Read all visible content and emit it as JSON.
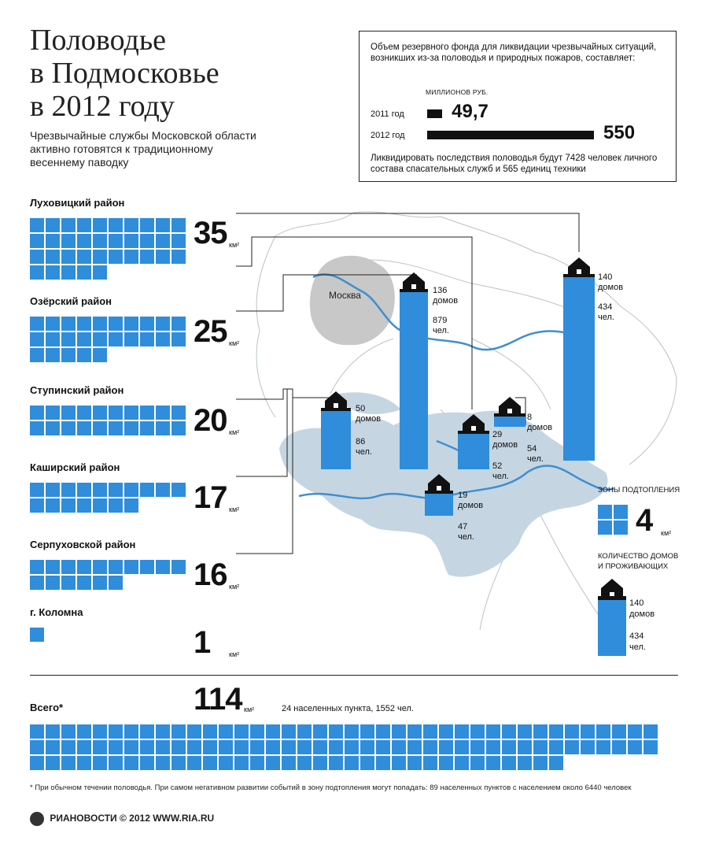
{
  "title_lines": [
    "Половодье",
    "в Подмосковье",
    "в 2012 году"
  ],
  "subtitle": "Чрезвычайные службы Московской области активно готовятся к традиционному весеннему паводку",
  "fund": {
    "title": "Объем резервного фонда для ликвидации чрезвычайных ситуаций, возникших из-за половодья и природных пожаров, составляет:",
    "unit": "МИЛЛИОНОВ РУБ.",
    "rows": [
      {
        "year": "2011 год",
        "value_label": "49,7",
        "value": 49.7
      },
      {
        "year": "2012 год",
        "value_label": "550",
        "value": 550
      }
    ],
    "footer": "Ликвидировать последствия половодья будут 7428 человек личного состава спасательных служб и 565 единиц техники"
  },
  "districts": [
    {
      "name": "Луховицкий район",
      "area_label": "35",
      "area": 35
    },
    {
      "name": "Озёрский район",
      "area_label": "25",
      "area": 25
    },
    {
      "name": "Ступинский район",
      "area_label": "20",
      "area": 20
    },
    {
      "name": "Каширский район",
      "area_label": "17",
      "area": 17
    },
    {
      "name": "Серпуховской район",
      "area_label": "16",
      "area": 16
    },
    {
      "name": "г. Коломна",
      "area_label": "1",
      "area": 1
    }
  ],
  "km_unit": "км²",
  "total": {
    "label": "Всего*",
    "area_label": "114",
    "area": 114,
    "summary": "24 населенных пункта, 1552 чел."
  },
  "map": {
    "city_label": "Москва",
    "houses": [
      {
        "houses": "136",
        "houses_unit": "домов",
        "people": "879",
        "people_unit": "чел."
      },
      {
        "houses": "140",
        "houses_unit": "домов",
        "people": "434",
        "people_unit": "чел."
      },
      {
        "houses": "50",
        "houses_unit": "домов",
        "people": "86",
        "people_unit": "чел."
      },
      {
        "houses": "29",
        "houses_unit": "домов",
        "people": "52",
        "people_unit": "чел."
      },
      {
        "houses": "8",
        "houses_unit": "домов",
        "people": "54",
        "people_unit": "чел."
      },
      {
        "houses": "19",
        "houses_unit": "домов",
        "people": "47",
        "people_unit": "чел."
      }
    ]
  },
  "legend": {
    "zones_label": "ЗОНЫ ПОДТОПЛЕНИЯ",
    "zones_value": "4",
    "zones_unit": "км²",
    "count_label": "КОЛИЧЕСТВО ДОМОВ И ПРОЖИВАЮЩИХ",
    "count_houses": "140",
    "count_houses_unit": "домов",
    "count_people": "434",
    "count_people_unit": "чел."
  },
  "footnote": "* При обычном течении половодья. При самом негативном развитии событий в зону подтопления могут попадать: 89 населенных пунктов с населением около 6440 человек",
  "credit": "РИАНОВОСТИ © 2012 WWW.RIA.RU",
  "colors": {
    "accent": "#2f8ddb",
    "map_fill": "#c5d6e2",
    "moscow": "#c8c8c8",
    "river": "#3f8fcf"
  }
}
